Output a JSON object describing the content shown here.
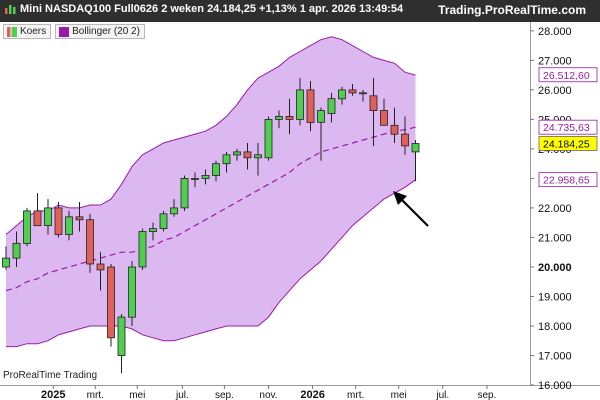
{
  "header": {
    "title": "Mini NASDAQ100 Full0626 2 weken 24.184,25 +1,13% 1 apr. 2026 13:49:54",
    "site": "Trading.ProRealTime.com",
    "icon": "chart-bars-icon"
  },
  "legend": [
    {
      "label": "Koers",
      "color": "#5fcf5f",
      "icon": "candles-icon"
    },
    {
      "label": "Bollinger (20 2)",
      "color": "#9a1aa8",
      "icon": "square-icon"
    }
  ],
  "watermark": "ProRealTime Trading",
  "colors": {
    "up": "#4fcf4f",
    "down": "#e0605a",
    "band_fill": "#dcb8f0",
    "band_line": "#9a1aa8",
    "mid_line": "#9a1aa8",
    "last_tag_bg": "#ffff00",
    "arrow": "#000000"
  },
  "chart_data": {
    "type": "candlestick",
    "instrument": "Mini NASDAQ100 Full0626",
    "interval": "2 weken",
    "last_price": "24.184,25",
    "ylim": [
      16000,
      28300
    ],
    "y_ticks": [
      {
        "value": 16000,
        "label": "16.000"
      },
      {
        "value": 17000,
        "label": "17.000"
      },
      {
        "value": 18000,
        "label": "18.000"
      },
      {
        "value": 19000,
        "label": "19.000"
      },
      {
        "value": 20000,
        "label": "20.000",
        "bold": true
      },
      {
        "value": 21000,
        "label": "21.000"
      },
      {
        "value": 22000,
        "label": "22.000"
      },
      {
        "value": 23000,
        "label": "23.000"
      },
      {
        "value": 24000,
        "label": "24.000"
      },
      {
        "value": 25000,
        "label": "25.000"
      },
      {
        "value": 26000,
        "label": "26.000"
      },
      {
        "value": 27000,
        "label": "27.000"
      },
      {
        "value": 28000,
        "label": "28.000"
      }
    ],
    "price_tags": [
      {
        "value": 26512.6,
        "label": "26.512,60",
        "style": "band"
      },
      {
        "value": 24735.63,
        "label": "24.735,63",
        "style": "band"
      },
      {
        "value": 24184.25,
        "label": "24.184,25",
        "style": "last"
      },
      {
        "value": 22958.65,
        "label": "22.958,65",
        "style": "band"
      }
    ],
    "x_labels": [
      {
        "index": 4.5,
        "label": "2025",
        "bold": true
      },
      {
        "index": 8.5,
        "label": "mrt."
      },
      {
        "index": 12.5,
        "label": "mei"
      },
      {
        "index": 16.8,
        "label": "jul."
      },
      {
        "index": 20.8,
        "label": "sep."
      },
      {
        "index": 25,
        "label": "nov."
      },
      {
        "index": 29.2,
        "label": "2026",
        "bold": true
      },
      {
        "index": 33.3,
        "label": "mrt."
      },
      {
        "index": 37.4,
        "label": "mei"
      },
      {
        "index": 41.6,
        "label": "jul."
      },
      {
        "index": 45.8,
        "label": "sep."
      }
    ],
    "candles": [
      {
        "o": 20000,
        "h": 20700,
        "l": 19900,
        "c": 20300
      },
      {
        "o": 20300,
        "h": 21200,
        "l": 20000,
        "c": 20800
      },
      {
        "o": 20800,
        "h": 22000,
        "l": 20700,
        "c": 21900
      },
      {
        "o": 21900,
        "h": 22500,
        "l": 21500,
        "c": 21400
      },
      {
        "o": 21400,
        "h": 22300,
        "l": 21100,
        "c": 22000
      },
      {
        "o": 22000,
        "h": 22200,
        "l": 21000,
        "c": 21100
      },
      {
        "o": 21100,
        "h": 21900,
        "l": 20900,
        "c": 21700
      },
      {
        "o": 21700,
        "h": 22200,
        "l": 21200,
        "c": 21600
      },
      {
        "o": 21600,
        "h": 21800,
        "l": 19800,
        "c": 20100
      },
      {
        "o": 20100,
        "h": 20500,
        "l": 19200,
        "c": 19900
      },
      {
        "o": 20000,
        "h": 20100,
        "l": 17300,
        "c": 17600
      },
      {
        "o": 17000,
        "h": 18400,
        "l": 16400,
        "c": 18300
      },
      {
        "o": 18300,
        "h": 20200,
        "l": 18000,
        "c": 20000
      },
      {
        "o": 20000,
        "h": 21300,
        "l": 19900,
        "c": 21200
      },
      {
        "o": 21200,
        "h": 21500,
        "l": 20900,
        "c": 21300
      },
      {
        "o": 21300,
        "h": 21900,
        "l": 21200,
        "c": 21800
      },
      {
        "o": 21800,
        "h": 22300,
        "l": 21700,
        "c": 22000
      },
      {
        "o": 22000,
        "h": 23100,
        "l": 21900,
        "c": 23000
      },
      {
        "o": 23000,
        "h": 23200,
        "l": 22700,
        "c": 23000
      },
      {
        "o": 23000,
        "h": 23300,
        "l": 22800,
        "c": 23100
      },
      {
        "o": 23100,
        "h": 23600,
        "l": 22900,
        "c": 23500
      },
      {
        "o": 23500,
        "h": 23900,
        "l": 23200,
        "c": 23800
      },
      {
        "o": 23800,
        "h": 24000,
        "l": 23600,
        "c": 23900
      },
      {
        "o": 23900,
        "h": 24200,
        "l": 23300,
        "c": 23700
      },
      {
        "o": 23700,
        "h": 24200,
        "l": 23100,
        "c": 23800
      },
      {
        "o": 23700,
        "h": 25100,
        "l": 23600,
        "c": 25000
      },
      {
        "o": 25000,
        "h": 25300,
        "l": 24700,
        "c": 25100
      },
      {
        "o": 25100,
        "h": 25700,
        "l": 24500,
        "c": 25000
      },
      {
        "o": 25000,
        "h": 26400,
        "l": 24800,
        "c": 26000
      },
      {
        "o": 26000,
        "h": 26300,
        "l": 24600,
        "c": 24900
      },
      {
        "o": 24900,
        "h": 25400,
        "l": 23600,
        "c": 25300
      },
      {
        "o": 25200,
        "h": 25900,
        "l": 24900,
        "c": 25700
      },
      {
        "o": 25700,
        "h": 26100,
        "l": 25500,
        "c": 26000
      },
      {
        "o": 26000,
        "h": 26200,
        "l": 25800,
        "c": 25900
      },
      {
        "o": 25900,
        "h": 26000,
        "l": 25600,
        "c": 25900
      },
      {
        "o": 25800,
        "h": 26400,
        "l": 24100,
        "c": 25300
      },
      {
        "o": 25300,
        "h": 25700,
        "l": 24800,
        "c": 24800
      },
      {
        "o": 24800,
        "h": 25400,
        "l": 24200,
        "c": 24500
      },
      {
        "o": 24500,
        "h": 25100,
        "l": 23800,
        "c": 24100
      },
      {
        "o": 23900,
        "h": 24300,
        "l": 22900,
        "c": 24184.25
      }
    ],
    "bollinger_upper": [
      21100,
      21400,
      21700,
      21900,
      21900,
      22100,
      22000,
      22000,
      22100,
      22100,
      22300,
      22800,
      23400,
      23800,
      24000,
      24200,
      24300,
      24400,
      24500,
      24600,
      24800,
      25100,
      25500,
      26000,
      26400,
      26600,
      26800,
      27100,
      27300,
      27500,
      27700,
      27800,
      27700,
      27500,
      27300,
      27100,
      27000,
      26900,
      26600,
      26500
    ],
    "bollinger_mid": [
      19200,
      19300,
      19500,
      19600,
      19800,
      19900,
      20000,
      20100,
      20200,
      20300,
      20400,
      20500,
      20500,
      20600,
      20700,
      20900,
      21000,
      21200,
      21400,
      21600,
      21800,
      22000,
      22200,
      22400,
      22600,
      22800,
      23000,
      23200,
      23500,
      23700,
      23900,
      24000,
      24100,
      24200,
      24300,
      24400,
      24500,
      24600,
      24650,
      24735
    ],
    "bollinger_lower": [
      17300,
      17300,
      17400,
      17400,
      17500,
      17700,
      17800,
      17900,
      18000,
      18000,
      18000,
      18000,
      17900,
      17700,
      17600,
      17500,
      17500,
      17600,
      17700,
      17800,
      17900,
      18000,
      18000,
      18000,
      18000,
      18300,
      18800,
      19200,
      19600,
      19900,
      20200,
      20600,
      21000,
      21400,
      21700,
      22000,
      22300,
      22500,
      22700,
      22958
    ]
  }
}
